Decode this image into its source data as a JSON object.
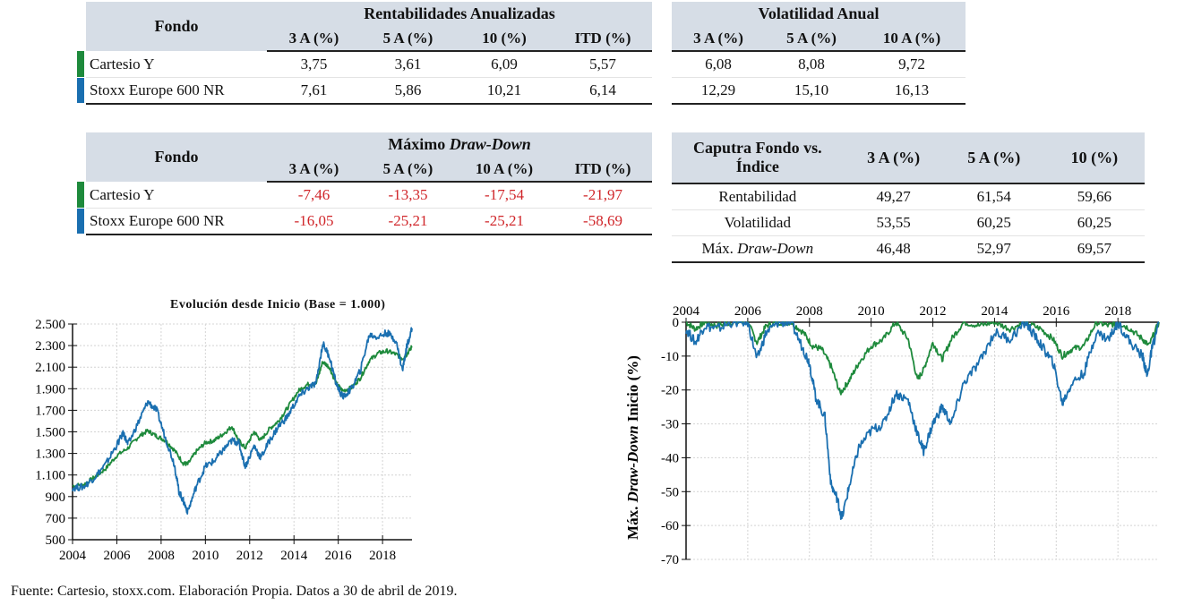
{
  "colors": {
    "fund": "#1e8a3c",
    "index": "#1a6fb0",
    "negative": "#d0262a",
    "header_bg": "#d6dde6"
  },
  "table_returns": {
    "col_fondo": "Fondo",
    "group_title": "Rentabilidades Anualizadas",
    "columns": [
      "3 A (%)",
      "5 A (%)",
      "10 (%)",
      "ITD (%)"
    ],
    "rows": [
      {
        "name": "Cartesio Y",
        "values": [
          "3,75",
          "3,61",
          "6,09",
          "5,57"
        ]
      },
      {
        "name": "Stoxx Europe 600 NR",
        "values": [
          "7,61",
          "5,86",
          "10,21",
          "6,14"
        ]
      }
    ]
  },
  "table_volatility": {
    "group_title": "Volatilidad Anual",
    "columns": [
      "3 A (%)",
      "5 A (%)",
      "10 A (%)"
    ],
    "rows": [
      {
        "values": [
          "6,08",
          "8,08",
          "9,72"
        ]
      },
      {
        "values": [
          "12,29",
          "15,10",
          "16,13"
        ]
      }
    ]
  },
  "table_drawdown": {
    "col_fondo": "Fondo",
    "group_title_plain": "Máximo ",
    "group_title_italic": "Draw-Down",
    "columns": [
      "3 A (%)",
      "5 A (%)",
      "10 A (%)",
      "ITD (%)"
    ],
    "rows": [
      {
        "name": "Cartesio Y",
        "values": [
          "-7,46",
          "-13,35",
          "-17,54",
          "-21,97"
        ]
      },
      {
        "name": "Stoxx Europe 600 NR",
        "values": [
          "-16,05",
          "-25,21",
          "-25,21",
          "-58,69"
        ]
      }
    ]
  },
  "table_capture": {
    "title_line1": "Caputra Fondo vs.",
    "title_line2": "Índice",
    "columns": [
      "3 A (%)",
      "5 A (%)",
      "10 (%)"
    ],
    "rows": [
      {
        "label": "Rentabilidad",
        "values": [
          "49,27",
          "61,54",
          "59,66"
        ]
      },
      {
        "label": "Volatilidad",
        "values": [
          "53,55",
          "60,25",
          "60,25"
        ]
      },
      {
        "label_plain": "Máx. ",
        "label_italic": "Draw-Down",
        "values": [
          "46,48",
          "52,97",
          "69,57"
        ]
      }
    ]
  },
  "chart_data": [
    {
      "type": "line",
      "title": "Evolución  desde Inicio (Base = 1.000)",
      "xlabel": "",
      "ylabel": "",
      "xlim": [
        2004,
        2019.33
      ],
      "ylim": [
        500,
        2500
      ],
      "xticks": [
        "2004",
        "2006",
        "2008",
        "2010",
        "2012",
        "2014",
        "2016",
        "2018"
      ],
      "yticks": [
        "2.500",
        "2.300",
        "2.100",
        "1.900",
        "1.700",
        "1.500",
        "1.300",
        "1.100",
        "900",
        "700",
        "500"
      ],
      "grid": true,
      "series": [
        {
          "name": "Cartesio Y",
          "color": "#1e8a3c",
          "x": [
            2004,
            2004.5,
            2005,
            2005.5,
            2006,
            2006.5,
            2007,
            2007.4,
            2007.8,
            2008.2,
            2008.6,
            2009.0,
            2009.2,
            2009.6,
            2010,
            2010.4,
            2010.8,
            2011.2,
            2011.5,
            2011.8,
            2012.2,
            2012.5,
            2012.9,
            2013.3,
            2013.7,
            2014.2,
            2014.6,
            2015.0,
            2015.3,
            2015.6,
            2015.9,
            2016.2,
            2016.6,
            2017.0,
            2017.4,
            2017.8,
            2018.2,
            2018.6,
            2018.9,
            2019.1,
            2019.33
          ],
          "values": [
            1000,
            1010,
            1080,
            1160,
            1280,
            1350,
            1460,
            1510,
            1460,
            1420,
            1330,
            1210,
            1200,
            1320,
            1400,
            1420,
            1480,
            1550,
            1420,
            1350,
            1500,
            1420,
            1530,
            1600,
            1720,
            1880,
            1940,
            1950,
            2150,
            2100,
            1950,
            1880,
            1910,
            2000,
            2160,
            2230,
            2250,
            2220,
            2180,
            2220,
            2290
          ]
        },
        {
          "name": "Stoxx Europe 600 NR",
          "color": "#1a6fb0",
          "x": [
            2004,
            2004.5,
            2005,
            2005.5,
            2006,
            2006.3,
            2006.5,
            2007,
            2007.4,
            2007.8,
            2008.2,
            2008.6,
            2008.8,
            2009.0,
            2009.2,
            2009.6,
            2010,
            2010.4,
            2010.8,
            2011.2,
            2011.5,
            2011.8,
            2012.2,
            2012.5,
            2012.9,
            2013.3,
            2013.7,
            2014.2,
            2014.6,
            2015.0,
            2015.3,
            2015.6,
            2015.9,
            2016.2,
            2016.6,
            2017.0,
            2017.4,
            2017.8,
            2018.2,
            2018.6,
            2018.9,
            2019.1,
            2019.33
          ],
          "values": [
            980,
            990,
            1080,
            1200,
            1380,
            1490,
            1380,
            1600,
            1780,
            1700,
            1440,
            1200,
            950,
            860,
            760,
            1000,
            1180,
            1230,
            1330,
            1420,
            1400,
            1180,
            1370,
            1260,
            1420,
            1550,
            1640,
            1820,
            1900,
            1950,
            2320,
            2200,
            1950,
            1820,
            1900,
            2070,
            2400,
            2380,
            2420,
            2350,
            2070,
            2300,
            2460
          ]
        }
      ]
    },
    {
      "type": "line",
      "title": "",
      "xlabel": "",
      "ylabel_plain": "Máx. ",
      "ylabel_italic": "Draw-Down",
      "ylabel_suffix": " Inicio (%)",
      "xlim": [
        2004,
        2019.33
      ],
      "ylim": [
        -70,
        0
      ],
      "xticks": [
        "2004",
        "2006",
        "2008",
        "2010",
        "2012",
        "2014",
        "2016",
        "2018"
      ],
      "yticks": [
        "0",
        "-10",
        "-20",
        "-30",
        "-40",
        "-50",
        "-60",
        "-70"
      ],
      "x_axis_position": "top",
      "grid": true,
      "series": [
        {
          "name": "Cartesio Y",
          "color": "#1e8a3c",
          "x": [
            2004,
            2004.3,
            2004.6,
            2005,
            2005.5,
            2006,
            2006.3,
            2006.6,
            2007,
            2007.4,
            2007.8,
            2008.1,
            2008.4,
            2008.7,
            2009.0,
            2009.3,
            2009.6,
            2010,
            2010.4,
            2010.8,
            2011.2,
            2011.5,
            2011.7,
            2012.0,
            2012.3,
            2012.6,
            2013.0,
            2013.5,
            2014,
            2014.5,
            2015.0,
            2015.5,
            2015.9,
            2016.2,
            2016.5,
            2016.9,
            2017.3,
            2017.7,
            2018.0,
            2018.4,
            2018.8,
            2019.0,
            2019.33
          ],
          "values": [
            0,
            -2,
            0,
            -1,
            0,
            0,
            -6,
            -1,
            0,
            0,
            -3,
            -7,
            -8,
            -13,
            -21,
            -17,
            -12,
            -7,
            -5,
            0,
            -5,
            -17,
            -14,
            -6,
            -11,
            -5,
            0,
            -1,
            0,
            -2,
            0,
            -2,
            -5,
            -10,
            -8,
            -7,
            0,
            -1,
            0,
            -2,
            -5,
            -7,
            0
          ]
        },
        {
          "name": "Stoxx Europe 600 NR",
          "color": "#1a6fb0",
          "x": [
            2004,
            2004.3,
            2004.6,
            2005,
            2005.5,
            2006,
            2006.3,
            2006.6,
            2007,
            2007.4,
            2007.8,
            2008.0,
            2008.2,
            2008.5,
            2008.7,
            2008.9,
            2009.05,
            2009.3,
            2009.6,
            2010,
            2010.4,
            2010.8,
            2011.2,
            2011.5,
            2011.7,
            2012.0,
            2012.3,
            2012.6,
            2013.0,
            2013.5,
            2014,
            2014.5,
            2015.0,
            2015.3,
            2015.6,
            2015.9,
            2016.2,
            2016.5,
            2016.9,
            2017.3,
            2017.7,
            2018.0,
            2018.4,
            2018.8,
            2018.95,
            2019.1,
            2019.33
          ],
          "values": [
            -2,
            -6,
            -1,
            -2,
            0,
            0,
            -11,
            -3,
            0,
            0,
            -8,
            -12,
            -22,
            -28,
            -48,
            -52,
            -58,
            -48,
            -37,
            -32,
            -30,
            -21,
            -23,
            -33,
            -38,
            -30,
            -25,
            -30,
            -18,
            -12,
            -3,
            -5,
            0,
            -4,
            -8,
            -12,
            -24,
            -18,
            -15,
            -3,
            -5,
            0,
            -6,
            -10,
            -16,
            -8,
            0
          ]
        }
      ]
    }
  ],
  "footnote": "Fuente: Cartesio, stoxx.com. Elaboración Propia. Datos a 30 de abril de 2019."
}
